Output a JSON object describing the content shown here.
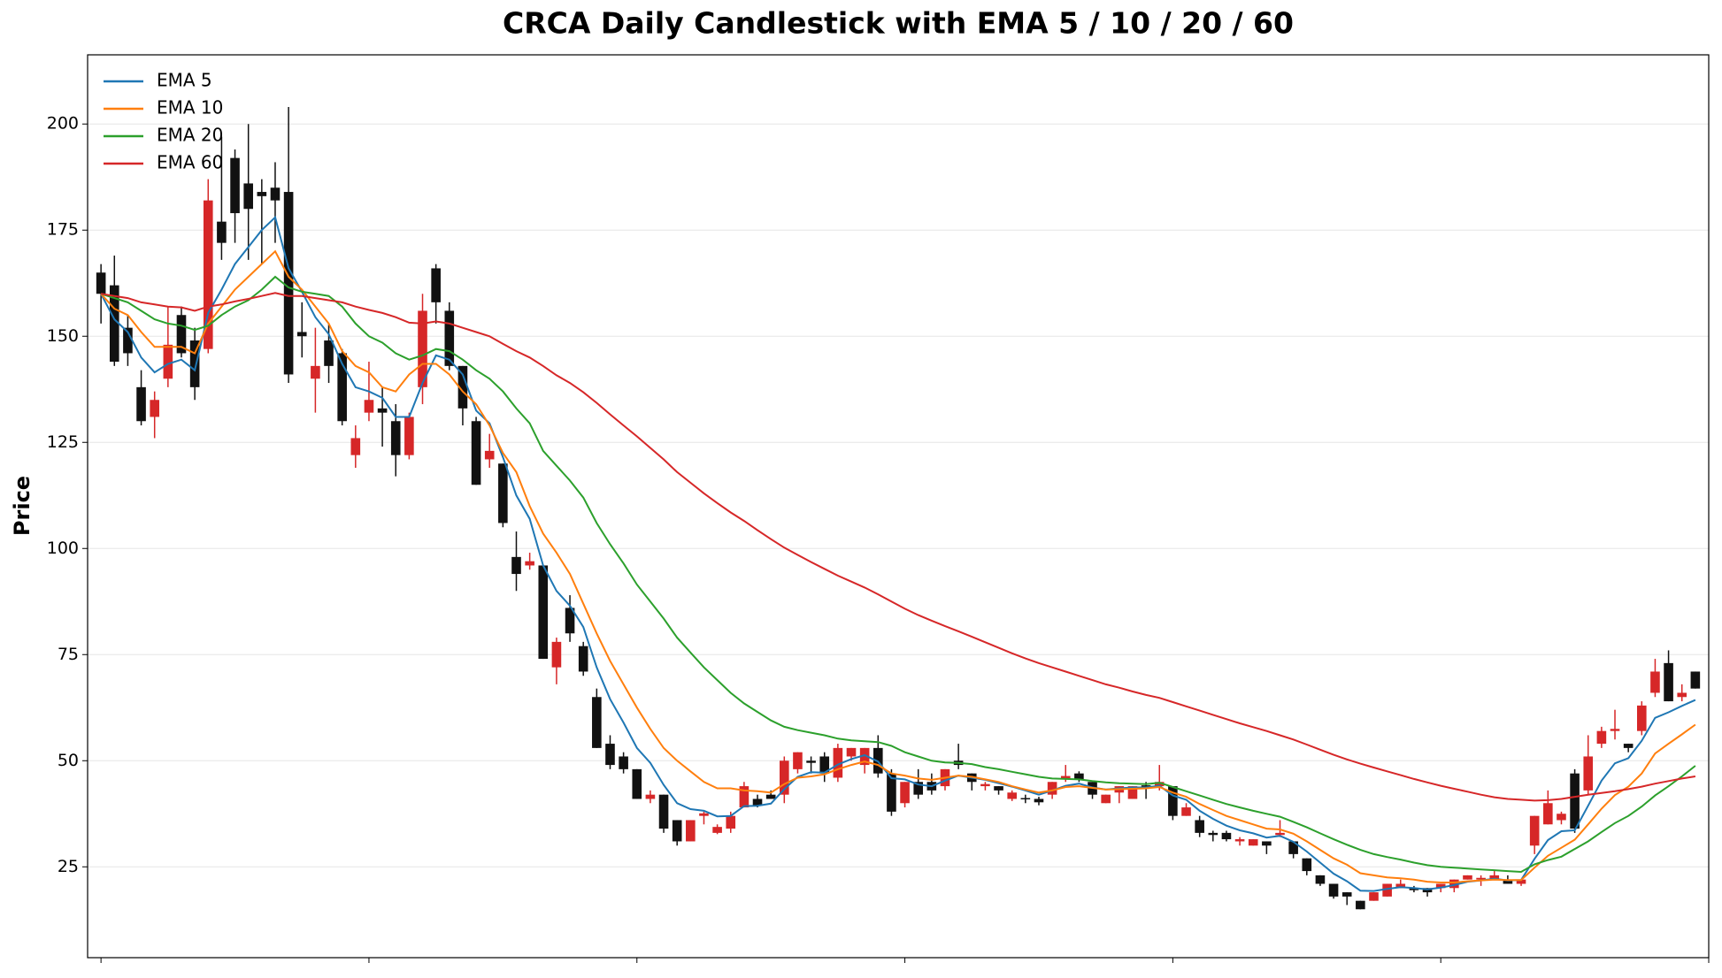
{
  "chart_data": {
    "type": "candlestick",
    "title": "CRCA Daily Candlestick with EMA 5 / 10 / 20 / 60",
    "y_label": "Price",
    "up_color": "#d62728",
    "down_color": "#111111",
    "grid": true,
    "legend": "upper left",
    "xlim": [
      -1,
      120
    ],
    "xticks": [
      0,
      20,
      40,
      60,
      80,
      100,
      120
    ],
    "ylim": [
      3.6,
      216.3
    ],
    "yticks": [
      25,
      50,
      75,
      100,
      125,
      150,
      175,
      200
    ],
    "open": [
      165,
      162,
      152,
      138,
      131,
      140,
      155,
      149,
      147,
      177,
      192,
      186,
      184,
      185,
      184,
      151,
      140,
      149,
      146,
      122,
      132,
      133,
      130,
      122,
      138,
      166,
      156,
      143,
      130,
      121,
      120,
      98,
      96,
      96,
      72,
      86,
      77,
      65,
      54,
      51,
      48,
      41,
      42,
      36,
      31,
      37,
      33,
      34,
      39,
      41,
      42,
      42,
      48,
      50,
      51,
      46,
      51,
      49,
      53,
      47,
      40,
      45,
      45,
      44,
      50,
      47,
      44,
      44,
      41,
      41.2,
      41,
      42,
      45.8,
      47,
      45,
      40,
      42.5,
      41,
      44.2,
      44,
      44,
      37,
      36,
      33,
      33,
      31,
      30,
      31,
      32.5,
      31,
      27,
      23,
      21,
      19,
      17,
      17,
      18,
      20,
      20,
      20,
      20,
      20,
      22,
      22,
      22,
      22,
      21,
      30,
      35,
      36,
      47,
      43,
      54,
      57,
      54,
      57,
      66,
      73,
      65,
      71
    ],
    "high": [
      167,
      169,
      155,
      142,
      137,
      157,
      157,
      152,
      187,
      197,
      194,
      200,
      187,
      191,
      204,
      158,
      152,
      153,
      147,
      129,
      144,
      138,
      134,
      132,
      160,
      167,
      158,
      143,
      131,
      127,
      120,
      104,
      99,
      96,
      79,
      89,
      78,
      67,
      56,
      52,
      48,
      43,
      42,
      36,
      36,
      38,
      35,
      38,
      45,
      42,
      43,
      51,
      52,
      51,
      52,
      54,
      53,
      53,
      56,
      48,
      45,
      48,
      47,
      48,
      54,
      47,
      45,
      44,
      43,
      42,
      41.5,
      45,
      49,
      47.5,
      45,
      42,
      44,
      44,
      45,
      49,
      44,
      40,
      37,
      33.5,
      33.5,
      32,
      31.5,
      31,
      36,
      31,
      27,
      23,
      21,
      19,
      17,
      19,
      21,
      22,
      20.5,
      20,
      21,
      22,
      23,
      23,
      24,
      23,
      22,
      37,
      43,
      38,
      48,
      56,
      58,
      62,
      54,
      64,
      74,
      76,
      68,
      71
    ],
    "low": [
      153,
      143,
      143,
      129,
      126,
      138,
      145,
      135,
      146,
      168,
      172,
      168,
      167,
      172,
      139,
      145,
      132,
      139,
      129,
      119,
      130,
      124,
      117,
      121,
      134,
      153,
      142,
      129,
      115,
      119,
      105,
      90,
      95,
      74,
      68,
      78,
      70,
      53,
      48,
      47,
      41,
      40,
      33,
      30,
      31,
      35,
      32.7,
      33,
      39,
      39,
      41,
      40,
      47,
      47,
      45,
      45,
      50,
      47,
      46,
      37,
      39,
      41,
      42,
      43,
      48,
      43,
      43,
      42,
      40.5,
      40,
      39.5,
      41,
      45,
      45,
      41,
      40,
      40,
      41,
      41,
      43,
      36,
      37,
      32,
      31,
      31,
      30,
      30,
      28,
      32,
      27,
      23,
      20.5,
      17.5,
      16,
      15,
      17,
      18,
      20,
      19,
      18,
      19,
      19,
      22,
      20.5,
      22,
      21,
      20.5,
      28,
      35,
      35,
      33,
      42,
      53,
      55,
      52,
      56,
      65,
      64,
      64,
      67
    ],
    "close": [
      160,
      144,
      146,
      130,
      135,
      148,
      146,
      138,
      182,
      172,
      179,
      180,
      183,
      182,
      141,
      150,
      143,
      143,
      130,
      126,
      135,
      132,
      122,
      131,
      156,
      158,
      143,
      133,
      115,
      123,
      106,
      94,
      97,
      74,
      78,
      80,
      71,
      53,
      49,
      48,
      41,
      42,
      34,
      31,
      36,
      37.6,
      34.4,
      37,
      44,
      39.5,
      41,
      50,
      52,
      49.5,
      47,
      53,
      53,
      53,
      47,
      38,
      45,
      42,
      43,
      48,
      49,
      45,
      44.5,
      43,
      42.5,
      41,
      40.2,
      45,
      46.4,
      45.5,
      42,
      42,
      44,
      44,
      43.8,
      45,
      37,
      39,
      33,
      32.5,
      31.5,
      31.5,
      31.5,
      30,
      33,
      28,
      24,
      21,
      18,
      18,
      15,
      19,
      21,
      21,
      19.5,
      19,
      21,
      22,
      23,
      22.4,
      23,
      21,
      22,
      37,
      40,
      37.5,
      34,
      51,
      57,
      57.5,
      53,
      63,
      71,
      64,
      66,
      67
    ],
    "series": [
      {
        "name": "EMA 5",
        "color": "#1f77b4",
        "values": [
          160,
          154,
          151,
          145,
          141.5,
          143.5,
          144.5,
          142,
          155.5,
          161,
          167,
          171,
          175,
          178,
          166,
          160.5,
          154.5,
          150.5,
          143.5,
          138,
          137,
          135.5,
          131,
          131,
          139,
          145.5,
          144.5,
          141,
          132.5,
          129.5,
          121.5,
          112.5,
          107,
          96,
          90,
          86.5,
          81.5,
          72,
          64.5,
          59,
          53,
          49.5,
          44.3,
          40,
          38.6,
          38.2,
          36.9,
          37,
          39.3,
          39.4,
          39.9,
          43.3,
          46.2,
          47.3,
          47.2,
          49.1,
          50.4,
          51.3,
          49.8,
          45.9,
          45.6,
          44.4,
          44,
          45.3,
          46.5,
          46,
          45.5,
          44.7,
          43.9,
          43,
          42,
          43,
          44.1,
          44.6,
          43.7,
          43.2,
          43.5,
          43.7,
          43.7,
          44.1,
          41.8,
          40.8,
          38.2,
          36.3,
          34.7,
          33.6,
          32.9,
          31.9,
          32.3,
          30.9,
          28.6,
          26,
          23.4,
          21.6,
          19.4,
          19.3,
          19.8,
          20.2,
          20,
          19.7,
          20.1,
          20.7,
          21.5,
          21.8,
          22.2,
          21.8,
          21.9,
          26.9,
          31.3,
          33.4,
          33.6,
          39.4,
          45.3,
          49.4,
          50.6,
          54.7,
          60.1,
          61.4,
          62.9,
          64.3
        ]
      },
      {
        "name": "EMA 10",
        "color": "#ff7f0e",
        "values": [
          160,
          156.5,
          155,
          151,
          147.5,
          147.5,
          147.5,
          146,
          153,
          157,
          161,
          164,
          167,
          170,
          164,
          161,
          157,
          153,
          146.5,
          143,
          141.5,
          138,
          137,
          141,
          143.5,
          143.5,
          141,
          137,
          134,
          129,
          122.5,
          118,
          110,
          103.5,
          99,
          94,
          87,
          80,
          73.5,
          68,
          62.5,
          57.5,
          53,
          50,
          47.5,
          45,
          43.5,
          43.5,
          43,
          42.8,
          42.5,
          44.5,
          46,
          46.3,
          46.8,
          48,
          49,
          49.8,
          49,
          47,
          46.5,
          45.8,
          45.5,
          46,
          46.5,
          46.2,
          45.6,
          45,
          44,
          43.2,
          42.5,
          43,
          43.8,
          44,
          43.6,
          43.2,
          43.3,
          43.4,
          43.5,
          43.8,
          42.5,
          41.5,
          39.8,
          38.4,
          37,
          36,
          35,
          34,
          33.8,
          32.8,
          31,
          29,
          27,
          25.5,
          23.5,
          23,
          22.5,
          22.3,
          22,
          21.5,
          21.3,
          21.3,
          21.6,
          21.8,
          22,
          21.9,
          21.9,
          24.8,
          27.6,
          29.5,
          31.4,
          35,
          38.7,
          41.9,
          43.9,
          47,
          51.7,
          54,
          56.2,
          58.5
        ]
      },
      {
        "name": "EMA 20",
        "color": "#2ca02c",
        "values": [
          160,
          159,
          158,
          156,
          154,
          153,
          152.5,
          151.5,
          152.5,
          155,
          157,
          158.5,
          161,
          164,
          161.5,
          160.5,
          160,
          159.5,
          157,
          153,
          150,
          148.5,
          146,
          144.5,
          145.5,
          147,
          146.5,
          144.5,
          142,
          140,
          137,
          133,
          129.5,
          123,
          119.5,
          116,
          112,
          106,
          101,
          96.5,
          91.5,
          87.5,
          83.5,
          79,
          75.5,
          72,
          69,
          66,
          63.5,
          61.5,
          59.5,
          58,
          57.2,
          56.6,
          56,
          55.2,
          54.8,
          54.6,
          54.4,
          53.5,
          52,
          51,
          50,
          49.6,
          49.5,
          49.2,
          48.5,
          48,
          47.4,
          46.8,
          46.2,
          45.8,
          45.7,
          45.6,
          45.2,
          44.9,
          44.7,
          44.6,
          44.5,
          44.8,
          43.8,
          42.8,
          41.8,
          40.8,
          39.8,
          39,
          38.2,
          37.5,
          36.8,
          35.6,
          34.3,
          32.9,
          31.5,
          30.2,
          29,
          28,
          27.3,
          26.7,
          26,
          25.4,
          25,
          24.8,
          24.6,
          24.4,
          24.2,
          24,
          23.8,
          25.6,
          26.6,
          27.4,
          29.2,
          31,
          33.2,
          35.3,
          37,
          39.2,
          41.8,
          44,
          46.3,
          48.8
        ]
      },
      {
        "name": "EMA 60",
        "color": "#d62728",
        "values": [
          160,
          159.5,
          159,
          158,
          157.5,
          157,
          156.8,
          156,
          157,
          157.5,
          158.2,
          158.8,
          159.5,
          160.2,
          159.5,
          159.5,
          159,
          158.5,
          158,
          157,
          156.2,
          155.5,
          154.5,
          153.2,
          153,
          153.5,
          153,
          152,
          151,
          150,
          148.2,
          146.5,
          145,
          143,
          140.8,
          139,
          136.8,
          134.3,
          131.6,
          129,
          126.4,
          123.7,
          121,
          118,
          115.5,
          113,
          110.7,
          108.5,
          106.5,
          104.3,
          102.2,
          100.2,
          98.5,
          96.8,
          95.2,
          93.6,
          92.2,
          90.8,
          89.2,
          87.5,
          85.8,
          84.3,
          83,
          81.7,
          80.5,
          79.2,
          77.9,
          76.6,
          75.3,
          74.1,
          73,
          72,
          71,
          70,
          69,
          68,
          67.2,
          66.3,
          65.5,
          64.8,
          63.8,
          62.8,
          61.8,
          60.8,
          59.8,
          58.8,
          57.9,
          57,
          56,
          55,
          53.8,
          52.6,
          51.4,
          50.3,
          49.3,
          48.4,
          47.5,
          46.6,
          45.7,
          44.9,
          44.1,
          43.4,
          42.7,
          42,
          41.4,
          41,
          40.8,
          40.6,
          40.7,
          41,
          41.5,
          42,
          42.4,
          42.8,
          43.3,
          43.9,
          44.6,
          45.2,
          45.8,
          46.3
        ]
      }
    ]
  }
}
